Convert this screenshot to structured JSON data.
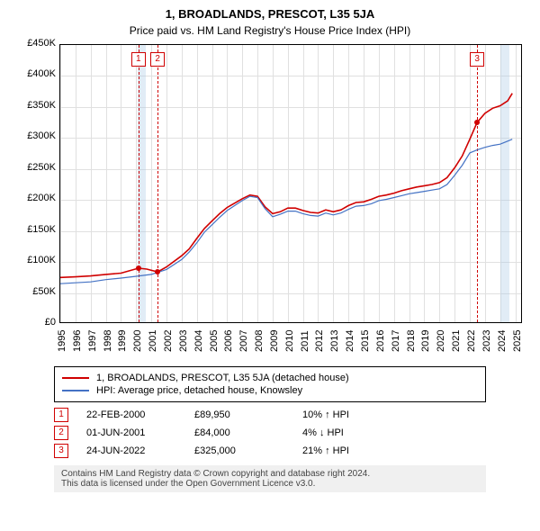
{
  "title": "1, BROADLANDS, PRESCOT, L35 5JA",
  "subtitle": "Price paid vs. HM Land Registry's House Price Index (HPI)",
  "chart": {
    "type": "line",
    "y": {
      "min": 0,
      "max": 450000,
      "step": 50000,
      "labels": [
        "£0",
        "£50K",
        "£100K",
        "£150K",
        "£200K",
        "£250K",
        "£300K",
        "£350K",
        "£400K",
        "£450K"
      ]
    },
    "x": {
      "min": 1995,
      "max": 2025.5,
      "labels": [
        "1995",
        "1996",
        "1997",
        "1998",
        "1999",
        "2000",
        "2001",
        "2002",
        "2003",
        "2004",
        "2005",
        "2006",
        "2007",
        "2008",
        "2009",
        "2010",
        "2011",
        "2012",
        "2013",
        "2014",
        "2015",
        "2016",
        "2017",
        "2018",
        "2019",
        "2020",
        "2021",
        "2022",
        "2023",
        "2024",
        "2025"
      ]
    },
    "highlight_bands": [
      {
        "from": 2000.1,
        "to": 2000.65
      },
      {
        "from": 2024.0,
        "to": 2024.6
      }
    ],
    "event_lines": [
      {
        "x": 2000.15,
        "label": "1"
      },
      {
        "x": 2001.42,
        "label": "2"
      },
      {
        "x": 2022.48,
        "label": "3"
      }
    ],
    "series": [
      {
        "name": "1, BROADLANDS, PRESCOT, L35 5JA (detached house)",
        "color": "#d00000",
        "width": 1.6,
        "markers": [
          {
            "x": 2000.15,
            "y": 89950
          },
          {
            "x": 2001.42,
            "y": 84000
          },
          {
            "x": 2022.48,
            "y": 325000
          }
        ],
        "points": [
          [
            1995,
            75000
          ],
          [
            1996,
            76000
          ],
          [
            1997,
            77500
          ],
          [
            1998,
            80000
          ],
          [
            1999,
            82000
          ],
          [
            2000.15,
            89950
          ],
          [
            2000.7,
            88500
          ],
          [
            2001.42,
            84000
          ],
          [
            2002,
            92000
          ],
          [
            2003,
            110000
          ],
          [
            2003.5,
            121000
          ],
          [
            2004,
            138000
          ],
          [
            2004.5,
            154000
          ],
          [
            2005,
            166000
          ],
          [
            2005.5,
            178000
          ],
          [
            2006,
            188000
          ],
          [
            2006.5,
            195000
          ],
          [
            2007,
            202000
          ],
          [
            2007.5,
            208000
          ],
          [
            2008,
            206000
          ],
          [
            2008.5,
            189000
          ],
          [
            2009,
            178000
          ],
          [
            2009.5,
            181000
          ],
          [
            2010,
            187000
          ],
          [
            2010.5,
            187000
          ],
          [
            2011,
            183000
          ],
          [
            2011.5,
            180000
          ],
          [
            2012,
            179000
          ],
          [
            2012.5,
            184000
          ],
          [
            2013,
            181000
          ],
          [
            2013.5,
            184000
          ],
          [
            2014,
            191000
          ],
          [
            2014.5,
            196000
          ],
          [
            2015,
            197000
          ],
          [
            2015.5,
            201000
          ],
          [
            2016,
            206000
          ],
          [
            2016.5,
            208000
          ],
          [
            2017,
            211000
          ],
          [
            2017.5,
            215000
          ],
          [
            2018,
            218000
          ],
          [
            2018.5,
            221000
          ],
          [
            2019,
            223000
          ],
          [
            2019.5,
            225000
          ],
          [
            2020,
            228000
          ],
          [
            2020.5,
            236000
          ],
          [
            2021,
            252000
          ],
          [
            2021.5,
            271000
          ],
          [
            2022,
            298000
          ],
          [
            2022.48,
            325000
          ],
          [
            2023,
            340000
          ],
          [
            2023.5,
            348000
          ],
          [
            2024,
            352000
          ],
          [
            2024.5,
            360000
          ],
          [
            2024.8,
            372000
          ]
        ]
      },
      {
        "name": "HPI: Average price, detached house, Knowsley",
        "color": "#4472c4",
        "width": 1.2,
        "points": [
          [
            1995,
            65000
          ],
          [
            1996,
            66500
          ],
          [
            1997,
            68000
          ],
          [
            1998,
            71500
          ],
          [
            1999,
            74000
          ],
          [
            2000,
            77000
          ],
          [
            2001,
            80000
          ],
          [
            2002,
            88000
          ],
          [
            2003,
            104000
          ],
          [
            2003.5,
            116000
          ],
          [
            2004,
            131000
          ],
          [
            2004.5,
            148000
          ],
          [
            2005,
            160000
          ],
          [
            2005.5,
            172000
          ],
          [
            2006,
            183000
          ],
          [
            2006.5,
            191000
          ],
          [
            2007,
            199000
          ],
          [
            2007.5,
            206000
          ],
          [
            2008,
            204000
          ],
          [
            2008.5,
            186000
          ],
          [
            2009,
            173000
          ],
          [
            2009.5,
            177000
          ],
          [
            2010,
            182000
          ],
          [
            2010.5,
            182000
          ],
          [
            2011,
            178000
          ],
          [
            2011.5,
            175000
          ],
          [
            2012,
            174000
          ],
          [
            2012.5,
            179000
          ],
          [
            2013,
            176000
          ],
          [
            2013.5,
            179000
          ],
          [
            2014,
            185000
          ],
          [
            2014.5,
            190000
          ],
          [
            2015,
            191000
          ],
          [
            2015.5,
            194000
          ],
          [
            2016,
            199000
          ],
          [
            2016.5,
            201000
          ],
          [
            2017,
            204000
          ],
          [
            2017.5,
            207000
          ],
          [
            2018,
            210000
          ],
          [
            2018.5,
            212000
          ],
          [
            2019,
            214000
          ],
          [
            2019.5,
            216000
          ],
          [
            2020,
            218000
          ],
          [
            2020.5,
            225000
          ],
          [
            2021,
            240000
          ],
          [
            2021.5,
            256000
          ],
          [
            2022,
            276000
          ],
          [
            2022.5,
            281000
          ],
          [
            2023,
            285000
          ],
          [
            2023.5,
            288000
          ],
          [
            2024,
            290000
          ],
          [
            2024.5,
            295000
          ],
          [
            2024.8,
            298000
          ]
        ]
      }
    ]
  },
  "legend": {
    "series1": "1, BROADLANDS, PRESCOT, L35 5JA (detached house)",
    "series1_color": "#d00000",
    "series2": "HPI: Average price, detached house, Knowsley",
    "series2_color": "#4472c4"
  },
  "events": [
    {
      "n": "1",
      "date": "22-FEB-2000",
      "price": "£89,950",
      "pct": "10%",
      "dir": "↑",
      "vs": "HPI"
    },
    {
      "n": "2",
      "date": "01-JUN-2001",
      "price": "£84,000",
      "pct": "4%",
      "dir": "↓",
      "vs": "HPI"
    },
    {
      "n": "3",
      "date": "24-JUN-2022",
      "price": "£325,000",
      "pct": "21%",
      "dir": "↑",
      "vs": "HPI"
    }
  ],
  "attribution": {
    "line1": "Contains HM Land Registry data © Crown copyright and database right 2024.",
    "line2": "This data is licensed under the Open Government Licence v3.0."
  }
}
